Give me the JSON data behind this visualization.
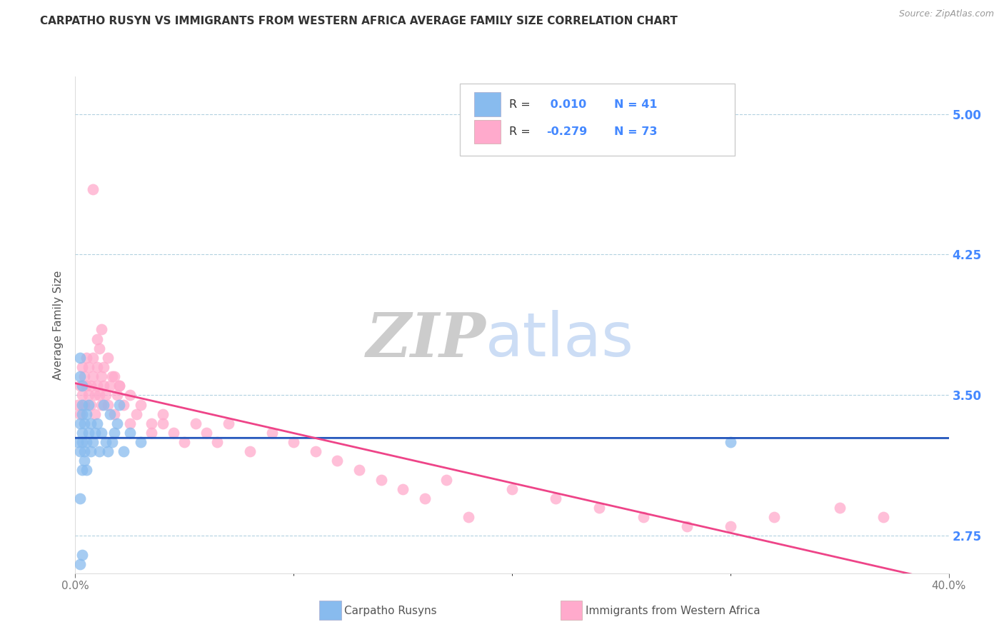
{
  "title": "CARPATHO RUSYN VS IMMIGRANTS FROM WESTERN AFRICA AVERAGE FAMILY SIZE CORRELATION CHART",
  "source": "Source: ZipAtlas.com",
  "ylabel": "Average Family Size",
  "bottom_label_blue": "Carpatho Rusyns",
  "bottom_label_pink": "Immigrants from Western Africa",
  "yticks_right": [
    2.75,
    3.5,
    4.25,
    5.0
  ],
  "blue_color": "#88BBEE",
  "pink_color": "#FFAACC",
  "blue_line_color": "#2255BB",
  "pink_line_color": "#EE4488",
  "xlim": [
    0.0,
    0.4
  ],
  "ylim": [
    2.55,
    5.2
  ],
  "blue_R": 0.01,
  "blue_N": 41,
  "pink_R": -0.279,
  "pink_N": 73,
  "blue_scatter_x": [
    0.001,
    0.002,
    0.002,
    0.002,
    0.002,
    0.002,
    0.003,
    0.003,
    0.003,
    0.003,
    0.003,
    0.003,
    0.004,
    0.004,
    0.004,
    0.005,
    0.005,
    0.005,
    0.006,
    0.006,
    0.007,
    0.007,
    0.008,
    0.009,
    0.01,
    0.011,
    0.012,
    0.013,
    0.014,
    0.015,
    0.016,
    0.017,
    0.018,
    0.019,
    0.02,
    0.022,
    0.025,
    0.03,
    0.3,
    0.003,
    0.002
  ],
  "blue_scatter_y": [
    3.25,
    3.2,
    3.35,
    3.6,
    2.95,
    3.7,
    3.3,
    3.4,
    3.25,
    3.1,
    3.45,
    3.55,
    3.2,
    3.35,
    3.15,
    3.25,
    3.4,
    3.1,
    3.3,
    3.45,
    3.2,
    3.35,
    3.25,
    3.3,
    3.35,
    3.2,
    3.3,
    3.45,
    3.25,
    3.2,
    3.4,
    3.25,
    3.3,
    3.35,
    3.45,
    3.2,
    3.3,
    3.25,
    3.25,
    2.65,
    2.6
  ],
  "pink_scatter_x": [
    0.001,
    0.002,
    0.002,
    0.003,
    0.003,
    0.004,
    0.004,
    0.005,
    0.005,
    0.006,
    0.006,
    0.007,
    0.007,
    0.008,
    0.008,
    0.009,
    0.009,
    0.01,
    0.01,
    0.011,
    0.011,
    0.012,
    0.012,
    0.013,
    0.013,
    0.014,
    0.015,
    0.016,
    0.017,
    0.018,
    0.019,
    0.02,
    0.022,
    0.025,
    0.028,
    0.03,
    0.035,
    0.04,
    0.045,
    0.05,
    0.055,
    0.06,
    0.065,
    0.07,
    0.08,
    0.09,
    0.1,
    0.11,
    0.12,
    0.13,
    0.14,
    0.15,
    0.16,
    0.17,
    0.18,
    0.2,
    0.22,
    0.24,
    0.26,
    0.28,
    0.3,
    0.32,
    0.35,
    0.37,
    0.025,
    0.035,
    0.04,
    0.01,
    0.012,
    0.015,
    0.018,
    0.02,
    0.008
  ],
  "pink_scatter_y": [
    3.45,
    3.4,
    3.55,
    3.5,
    3.65,
    3.6,
    3.45,
    3.55,
    3.7,
    3.5,
    3.65,
    3.55,
    3.45,
    3.6,
    3.7,
    3.5,
    3.4,
    3.55,
    3.65,
    3.5,
    3.75,
    3.6,
    3.45,
    3.55,
    3.65,
    3.5,
    3.45,
    3.55,
    3.6,
    3.4,
    3.5,
    3.55,
    3.45,
    3.5,
    3.4,
    3.45,
    3.35,
    3.4,
    3.3,
    3.25,
    3.35,
    3.3,
    3.25,
    3.35,
    3.2,
    3.3,
    3.25,
    3.2,
    3.15,
    3.1,
    3.05,
    3.0,
    2.95,
    3.05,
    2.85,
    3.0,
    2.95,
    2.9,
    2.85,
    2.8,
    2.8,
    2.85,
    2.9,
    2.85,
    3.35,
    3.3,
    3.35,
    3.8,
    3.85,
    3.7,
    3.6,
    3.55,
    4.6
  ]
}
